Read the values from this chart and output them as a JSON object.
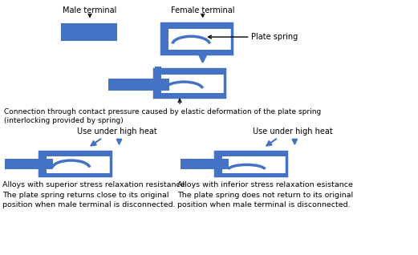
{
  "bg_color": "#ffffff",
  "blue": "#4472C4",
  "blue_dark": "#2E4D8A",
  "line_color": "#000000",
  "text_color": "#000000",
  "labels": {
    "male_terminal": "Male terminal",
    "female_terminal": "Female terminal",
    "plate_spring": "Plate spring",
    "connection_text1": "Connection through contact pressure caused by elastic deformation of the plate spring",
    "connection_text2": "(interlocking provided by spring)",
    "use_high_heat": "Use under high heat",
    "alloy_superior_1": "Alloys with superior stress relaxation resistance",
    "alloy_superior_2": "The plate spring returns close to its original",
    "alloy_superior_3": "position when male terminal is disconnected.",
    "alloy_inferior_1": "Alloys with inferior stress relaxation esistance",
    "alloy_inferior_2": "The plate spring does not return to its original",
    "alloy_inferior_3": "position when male terminal is disconnected."
  },
  "figsize": [
    5.21,
    3.18
  ],
  "dpi": 100
}
